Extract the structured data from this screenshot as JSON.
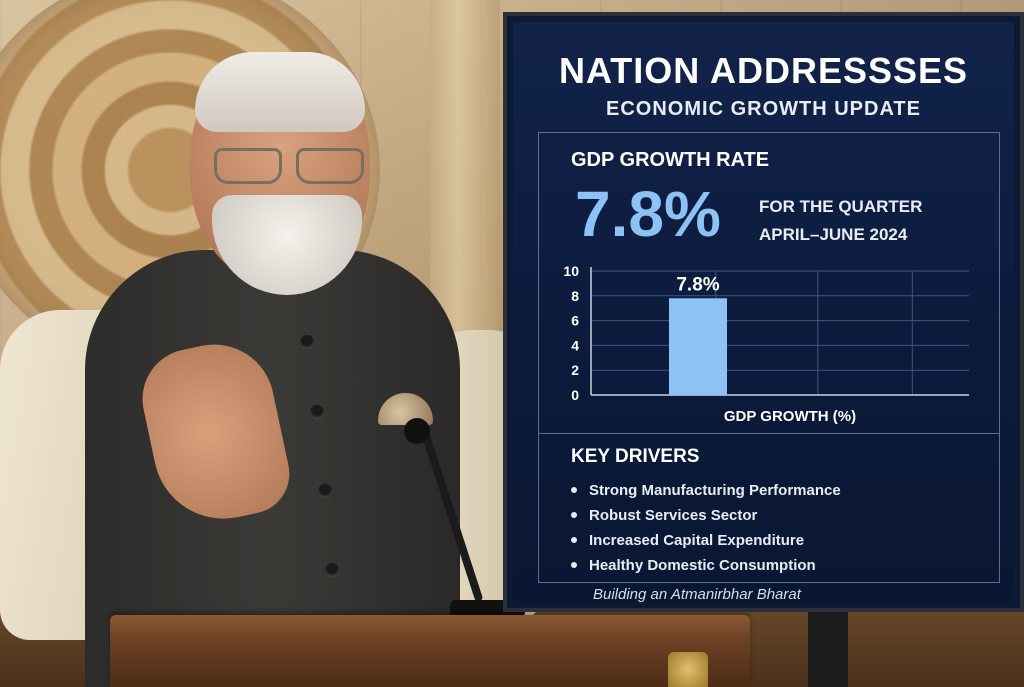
{
  "screen": {
    "title": "NATION ADDRESSSES",
    "subtitle": "ECONOMIC GROWTH UPDATE",
    "gdp": {
      "label": "GDP GROWTH RATE",
      "value": "7.8%",
      "period_line1": "FOR THE QUARTER",
      "period_line2": "APRIL–JUNE 2024"
    },
    "drivers": {
      "title": "KEY DRIVERS",
      "items": [
        "Strong Manufacturing Performance",
        "Robust Services Sector",
        "Increased Capital Expenditure",
        "Healthy Domestic Consumption"
      ]
    },
    "tagline": "Building an Atmanirbhar Bharat"
  },
  "chart_data": {
    "type": "bar",
    "categories": [
      ""
    ],
    "values": [
      7.8
    ],
    "bar_labels": [
      "7.8%"
    ],
    "xlabel": "GDP GROWTH (%)",
    "ylabel": "",
    "ylim": [
      0,
      10
    ],
    "yticks": [
      "0",
      "2",
      "4",
      "6",
      "8",
      "10"
    ],
    "grid": true,
    "bar_color": "#8cc2f4"
  },
  "colors": {
    "screen_bg": "#0b1a3a",
    "accent": "#8cc2f4",
    "text": "#ffffff"
  }
}
